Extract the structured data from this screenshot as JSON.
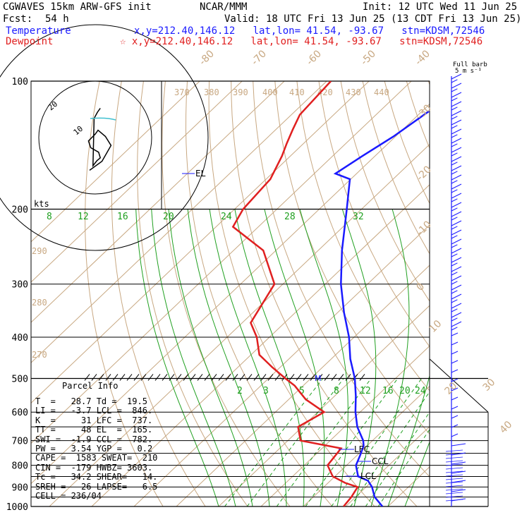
{
  "header": {
    "model": "CGWAVES 15km ARW-GFS init",
    "org": "NCAR/MMM",
    "init": "Init: 12 UTC Wed 11 Jun 25",
    "fcst_label": "Fcst:",
    "fcst_value": "54 h",
    "valid": "Valid: 18 UTC Fri 13 Jun 25 (13 CDT Fri 13 Jun 25)",
    "temp_line": "Temperature",
    "temp_loc": "x,y=212.40,146.12   lat,lon= 41.54, -93.67   stn=KDSM,72546",
    "dew_line": "Dewpoint",
    "dew_loc": "☆ x,y=212.40,146.12   lat,lon= 41.54, -93.67   stn=KDSM,72546",
    "barb_label_1": "Full barb",
    "barb_label_2": "5 m s⁻¹"
  },
  "colors": {
    "temperature": "#1a1aff",
    "dewpoint": "#e02020",
    "isotherm": "#c8a882",
    "mixing_ratio": "#20a020",
    "hodograph_trace": "#000000",
    "hodograph_alt": "#40c0d0"
  },
  "axis": {
    "pressure_ticks": [
      "100",
      "200",
      "300",
      "400",
      "500",
      "600",
      "700",
      "800",
      "900",
      "1000"
    ],
    "isotherm_labels": [
      "-80",
      "-70",
      "-60",
      "-50",
      "-40",
      "-30",
      "-20",
      "-10",
      "0",
      "10",
      "20",
      "30",
      "40"
    ],
    "theta_labels": [
      "370",
      "380",
      "390",
      "400",
      "410",
      "420",
      "430",
      "440",
      "290",
      "280",
      "270"
    ],
    "mix_upper": [
      "8",
      "12",
      "16",
      "20",
      "24",
      "28",
      "32"
    ],
    "mix_lower": [
      "2",
      "3",
      "5",
      "8",
      "12",
      "16",
      "20",
      "24"
    ],
    "kts_label": "kts",
    "hodo_label_outer": "20",
    "hodo_label_inner": "10"
  },
  "annotations": {
    "el": "EL",
    "lfc": "LFC",
    "ccl": "CCL",
    "lcl": "LCL",
    "m": "M"
  },
  "parcel": {
    "title": "Parcel Info",
    "rows": [
      "T  =   28.7 Td =  19.5",
      "LI =   -3.7 LCL =  846.",
      "K  =     31 LFC =  737.",
      "TT =     48 EL  =  165.",
      "SWI =  -1.9 CCL =  782.",
      "PW =   3.54 YGP =   0.2",
      "CAPE =  1583 SWEAT=  210",
      "CIN =  -179 HWBZ= 3603.",
      "Tc =   34.2 SHEAR=   14.",
      "SREH =   26 LAPSE=   6.5",
      "CELL = 236/04"
    ]
  },
  "chart_data": {
    "type": "line",
    "title": "",
    "xlabel": "",
    "ylabel": "",
    "y_scale": "log-pressure",
    "ylim": [
      1000,
      100
    ],
    "series": [
      {
        "name": "Temperature",
        "x": [
          28.7,
          24.5,
          21.4,
          18.9,
          15.5,
          12.2,
          10.8,
          9.2,
          7.8,
          3.0,
          -1.1,
          -5.0,
          -9.6,
          -15.5,
          -21.2,
          -28.5,
          -36.3,
          -44.4,
          -53.5,
          -60.2,
          -65.0,
          -63.0,
          -60.5,
          -58.0,
          -55.0
        ],
        "y": [
          1000,
          950,
          900,
          870,
          850,
          800,
          760,
          720,
          700,
          650,
          600,
          550,
          500,
          450,
          400,
          350,
          300,
          250,
          200,
          170,
          165,
          150,
          135,
          115,
          100
        ]
      },
      {
        "name": "Dewpoint",
        "x": [
          19.5,
          19.0,
          18.0,
          14.0,
          9.5,
          5.5,
          4.5,
          -7.0,
          -11.0,
          -8.5,
          -16.0,
          -22.0,
          -26.0,
          -32.0,
          -38.0,
          -43.0,
          -48.0,
          -52.0,
          -63.0,
          -76.0,
          -78.0,
          -79.0,
          -82.0,
          -84.0,
          -86.0,
          -88.0,
          -89.0
        ],
        "y": [
          1000,
          950,
          900,
          880,
          850,
          800,
          730,
          700,
          650,
          600,
          560,
          520,
          500,
          470,
          440,
          400,
          370,
          300,
          250,
          220,
          200,
          170,
          150,
          140,
          130,
          120,
          100
        ]
      }
    ],
    "hodograph": {
      "rings_kts": [
        10,
        20
      ],
      "u": [
        -1.0,
        1.2,
        2.8,
        1.8,
        0.5,
        0.0,
        -1.2,
        -0.8,
        0.6,
        0.9,
        0.3,
        -0.4,
        -0.2,
        0.4,
        0.9
      ],
      "v": [
        -5.8,
        -4.2,
        -1.4,
        0.2,
        1.3,
        0.6,
        -0.6,
        -1.8,
        -2.6,
        -3.6,
        -4.1,
        -5.0,
        3.4,
        4.5,
        5.2
      ]
    }
  }
}
